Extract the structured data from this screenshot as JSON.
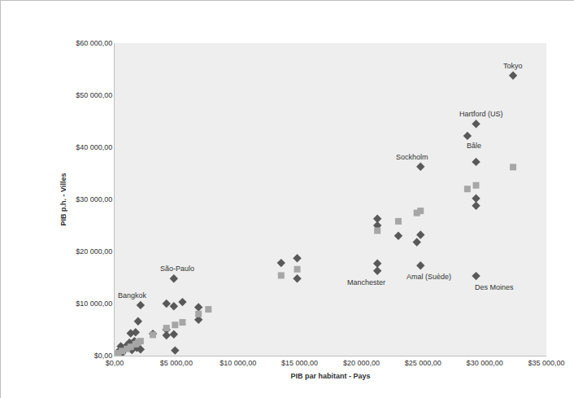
{
  "chart_data": {
    "type": "scatter",
    "x_label": "PIB par habitant - Pays",
    "y_label": "PIB p.h. - Villes",
    "xlim": [
      0,
      35000
    ],
    "xticks": [
      {
        "value": 0,
        "label": "$0,00"
      },
      {
        "value": 5000,
        "label": "$5 000,00"
      },
      {
        "value": 10000,
        "label": "$10 000,00"
      },
      {
        "value": 15000,
        "label": "$15 000,00"
      },
      {
        "value": 20000,
        "label": "$20 000,00"
      },
      {
        "value": 25000,
        "label": "$25 000,00"
      },
      {
        "value": 30000,
        "label": "$30 000,00"
      },
      {
        "value": 35000,
        "label": "$35 000,00"
      }
    ],
    "ylim": [
      0,
      60000
    ],
    "yticks": [
      {
        "value": 0,
        "label": "$0,00"
      },
      {
        "value": 10000,
        "label": "$10 000,00"
      },
      {
        "value": 20000,
        "label": "$20 000,00"
      },
      {
        "value": 30000,
        "label": "$30 000,00"
      },
      {
        "value": 40000,
        "label": "$40 000,00"
      },
      {
        "value": 50000,
        "label": "$50 000,00"
      },
      {
        "value": 60000,
        "label": "$60 000,00"
      }
    ],
    "grid": false,
    "series": [
      {
        "color": "#595959",
        "marker": "diamond",
        "x": [
          32300,
          29300,
          28600,
          29300,
          29300,
          29300,
          29300,
          24800,
          24800,
          24800,
          24500,
          21300,
          21300,
          23000,
          21300,
          21300,
          13500,
          14800,
          14800,
          4800,
          4200,
          5500,
          4800,
          6800,
          6800,
          4200,
          4800,
          4900,
          4200,
          2100,
          1900,
          1700,
          1300,
          1600,
          1800,
          2100,
          1400,
          1000,
          800,
          500,
          300,
          200,
          600,
          1200,
          3100
        ],
        "values": [
          53800,
          44500,
          42200,
          37200,
          30200,
          28800,
          15300,
          36300,
          23200,
          17300,
          21800,
          26300,
          25000,
          23000,
          17700,
          16300,
          17800,
          18700,
          14800,
          14800,
          10000,
          10300,
          9500,
          9300,
          6900,
          3900,
          4100,
          1000,
          5000,
          9700,
          6600,
          4500,
          4300,
          2800,
          1500,
          1200,
          1100,
          2000,
          1300,
          1800,
          800,
          200,
          500,
          2500,
          4200
        ],
        "labels": [
          "Tokyo",
          "Hartford (US)",
          "Bâle",
          null,
          null,
          null,
          "Des Moines",
          "Sockholm",
          null,
          "Amal (Suède)",
          null,
          null,
          null,
          null,
          null,
          "Manchester",
          null,
          null,
          null,
          "São-Paulo",
          null,
          null,
          null,
          null,
          null,
          null,
          null,
          null,
          null,
          "Bangkok",
          null,
          null,
          null,
          null,
          null,
          null,
          null,
          null,
          null,
          null,
          null,
          null,
          null,
          null,
          null
        ]
      },
      {
        "color": "#a6a6a6",
        "marker": "square",
        "x": [
          32300,
          29300,
          28600,
          24800,
          24500,
          23000,
          21300,
          14800,
          13500,
          7600,
          6800,
          5500,
          4900,
          4200,
          3100,
          2100,
          1900,
          1700,
          1300,
          1000,
          600,
          300,
          100
        ],
        "values": [
          36200,
          32700,
          32000,
          27800,
          27400,
          25800,
          24000,
          16600,
          15400,
          8900,
          8000,
          6400,
          5900,
          5300,
          4000,
          2800,
          2500,
          2200,
          1700,
          1300,
          900,
          500,
          300
        ]
      }
    ]
  }
}
